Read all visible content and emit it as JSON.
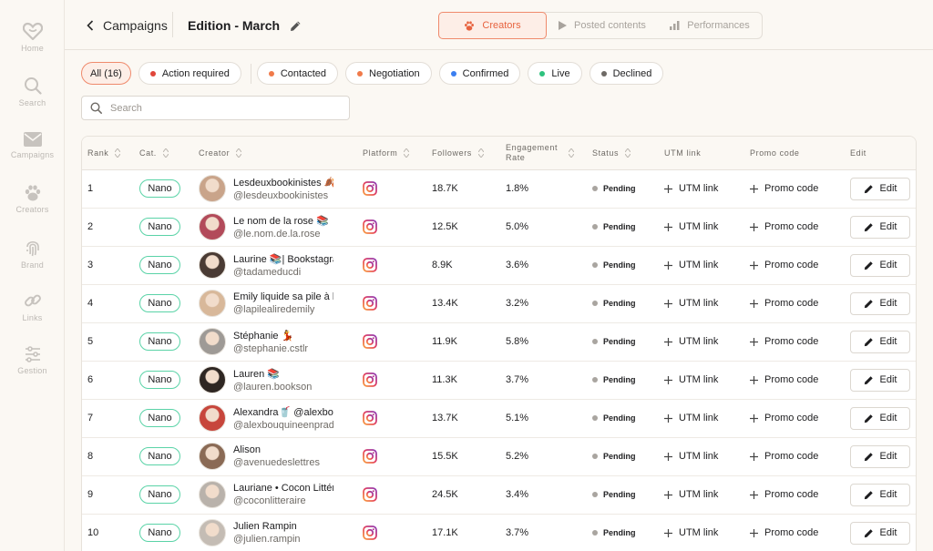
{
  "sidebar": {
    "items": [
      {
        "label": "Home",
        "icon": "heart-icon"
      },
      {
        "label": "Search",
        "icon": "search-icon"
      },
      {
        "label": "Campaigns",
        "icon": "envelope-icon"
      },
      {
        "label": "Creators",
        "icon": "paw-icon"
      },
      {
        "label": "Brand",
        "icon": "fingerprint-icon"
      },
      {
        "label": "Links",
        "icon": "link-icon"
      },
      {
        "label": "Gestion",
        "icon": "sliders-icon"
      }
    ]
  },
  "header": {
    "back_label": "Campaigns",
    "edition_title": "Edition - March",
    "tabs": [
      {
        "label": "Creators",
        "icon": "paw-icon",
        "active": true
      },
      {
        "label": "Posted contents",
        "icon": "play-icon",
        "active": false
      },
      {
        "label": "Performances",
        "icon": "bar-chart-icon",
        "active": false
      }
    ]
  },
  "filters": [
    {
      "label": "All (16)",
      "dot": null
    },
    {
      "label": "Action required",
      "dot": "#e0463a"
    },
    {
      "label": "Contacted",
      "dot": "#f07a4a"
    },
    {
      "label": "Negotiation",
      "dot": "#f07a4a"
    },
    {
      "label": "Confirmed",
      "dot": "#3b7ff0"
    },
    {
      "label": "Live",
      "dot": "#2ec27e"
    },
    {
      "label": "Declined",
      "dot": "#6e6a65"
    }
  ],
  "search": {
    "placeholder": "Search"
  },
  "table": {
    "columns": [
      "Rank",
      "Cat.",
      "Creator",
      "Platform",
      "Followers",
      "Engagement Rate",
      "Status",
      "UTM link",
      "Promo code",
      "Edit"
    ],
    "utm_label": "UTM link",
    "promo_label": "Promo code",
    "edit_label": "Edit",
    "rows": [
      {
        "rank": "1",
        "cat": "Nano",
        "name": "Lesdeuxbookinistes 🍂",
        "handle": "@lesdeuxbookinistes",
        "followers": "18.7K",
        "engagement": "1.8%",
        "status": "Pending",
        "avatar_color": "#c9a48a"
      },
      {
        "rank": "2",
        "cat": "Nano",
        "name": "Le nom de la rose 📚",
        "handle": "@le.nom.de.la.rose",
        "followers": "12.5K",
        "engagement": "5.0%",
        "status": "Pending",
        "avatar_color": "#b24a5a"
      },
      {
        "rank": "3",
        "cat": "Nano",
        "name": "Laurine 📚| Bookstagram",
        "handle": "@tadameducdi",
        "followers": "8.9K",
        "engagement": "3.6%",
        "status": "Pending",
        "avatar_color": "#4a3b34"
      },
      {
        "rank": "4",
        "cat": "Nano",
        "name": "Emily liquide sa pile à lire",
        "handle": "@lapilealiredemily",
        "followers": "13.4K",
        "engagement": "3.2%",
        "status": "Pending",
        "avatar_color": "#d8b89a"
      },
      {
        "rank": "5",
        "cat": "Nano",
        "name": "Stéphanie 💃",
        "handle": "@stephanie.cstlr",
        "followers": "11.9K",
        "engagement": "5.8%",
        "status": "Pending",
        "avatar_color": "#9e9a96"
      },
      {
        "rank": "6",
        "cat": "Nano",
        "name": "Lauren 📚",
        "handle": "@lauren.bookson",
        "followers": "11.3K",
        "engagement": "3.7%",
        "status": "Pending",
        "avatar_color": "#2e2622"
      },
      {
        "rank": "7",
        "cat": "Nano",
        "name": "Alexandra🥤 @alexbouquine",
        "handle": "@alexbouquineenprada",
        "followers": "13.7K",
        "engagement": "5.1%",
        "status": "Pending",
        "avatar_color": "#c7463c"
      },
      {
        "rank": "8",
        "cat": "Nano",
        "name": "Alison",
        "handle": "@avenuedeslettres",
        "followers": "15.5K",
        "engagement": "5.2%",
        "status": "Pending",
        "avatar_color": "#8a6a55"
      },
      {
        "rank": "9",
        "cat": "Nano",
        "name": "Lauriane • Cocon Littéraire",
        "handle": "@coconlitteraire",
        "followers": "24.5K",
        "engagement": "3.4%",
        "status": "Pending",
        "avatar_color": "#b9b2ab"
      },
      {
        "rank": "10",
        "cat": "Nano",
        "name": "Julien Rampin",
        "handle": "@julien.rampin",
        "followers": "17.1K",
        "engagement": "3.7%",
        "status": "Pending",
        "avatar_color": "#c4bcb4"
      }
    ]
  },
  "colors": {
    "accent": "#e7633f",
    "accent_bg": "#fdeee7",
    "nano_badge": "#5ad3a7",
    "pending_dot": "#a9a5a0"
  }
}
